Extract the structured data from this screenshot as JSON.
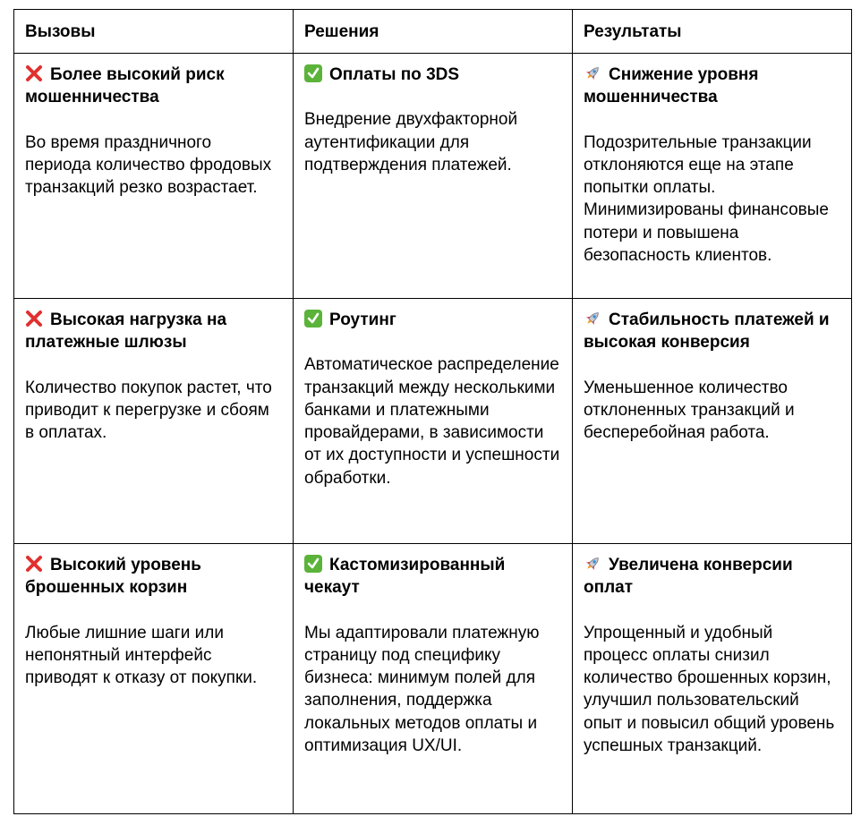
{
  "headers": [
    "Вызовы",
    "Решения",
    "Результаты"
  ],
  "icons": {
    "challenge": "cross-mark-icon",
    "solution": "check-mark-icon",
    "result": "rocket-icon"
  },
  "colors": {
    "cross": "#e0312f",
    "check": "#5bb33a"
  },
  "rows": [
    {
      "challenge": {
        "title": "Более высокий риск мошенничества",
        "text": "Во время праздничного периода количество фродовых транзакций резко возрастает."
      },
      "solution": {
        "title": "Оплаты по 3DS",
        "text": "Внедрение двухфакторной аутентификации для подтверждения платежей."
      },
      "result": {
        "title": "Снижение уровня мошенничества",
        "text": "Подозрительные транзакции отклоняются еще на этапе попытки оплаты. Минимизированы финансовые потери и повышена безопасность клиентов."
      }
    },
    {
      "challenge": {
        "title": "Высокая нагрузка на платежные шлюзы",
        "text": "Количество покупок растет, что приводит к перегрузке и сбоям в оплатах."
      },
      "solution": {
        "title": "Роутинг",
        "text": "Автоматическое распределение транзакций между несколькими банками и платежными провайдерами, в зависимости от их доступности и успешности обработки."
      },
      "result": {
        "title": "Стабильность платежей и высокая конверсия",
        "text": "Уменьшенное количество отклоненных транзакций и бесперебойная работа."
      }
    },
    {
      "challenge": {
        "title": "Высокий уровень брошенных корзин",
        "text": "Любые лишние шаги или непонятный интерфейс приводят к отказу от покупки."
      },
      "solution": {
        "title": "Кастомизированный чекаут",
        "text": "Мы адаптировали платежную страницу под специфику бизнеса: минимум полей для заполнения, поддержка локальных методов оплаты и оптимизация UX/UI."
      },
      "result": {
        "title": "Увеличена конверсии оплат",
        "text": "Упрощенный и удобный процесс оплаты снизил количество брошенных корзин, улучшил пользовательский опыт и повысил общий уровень успешных транзакций."
      }
    }
  ]
}
